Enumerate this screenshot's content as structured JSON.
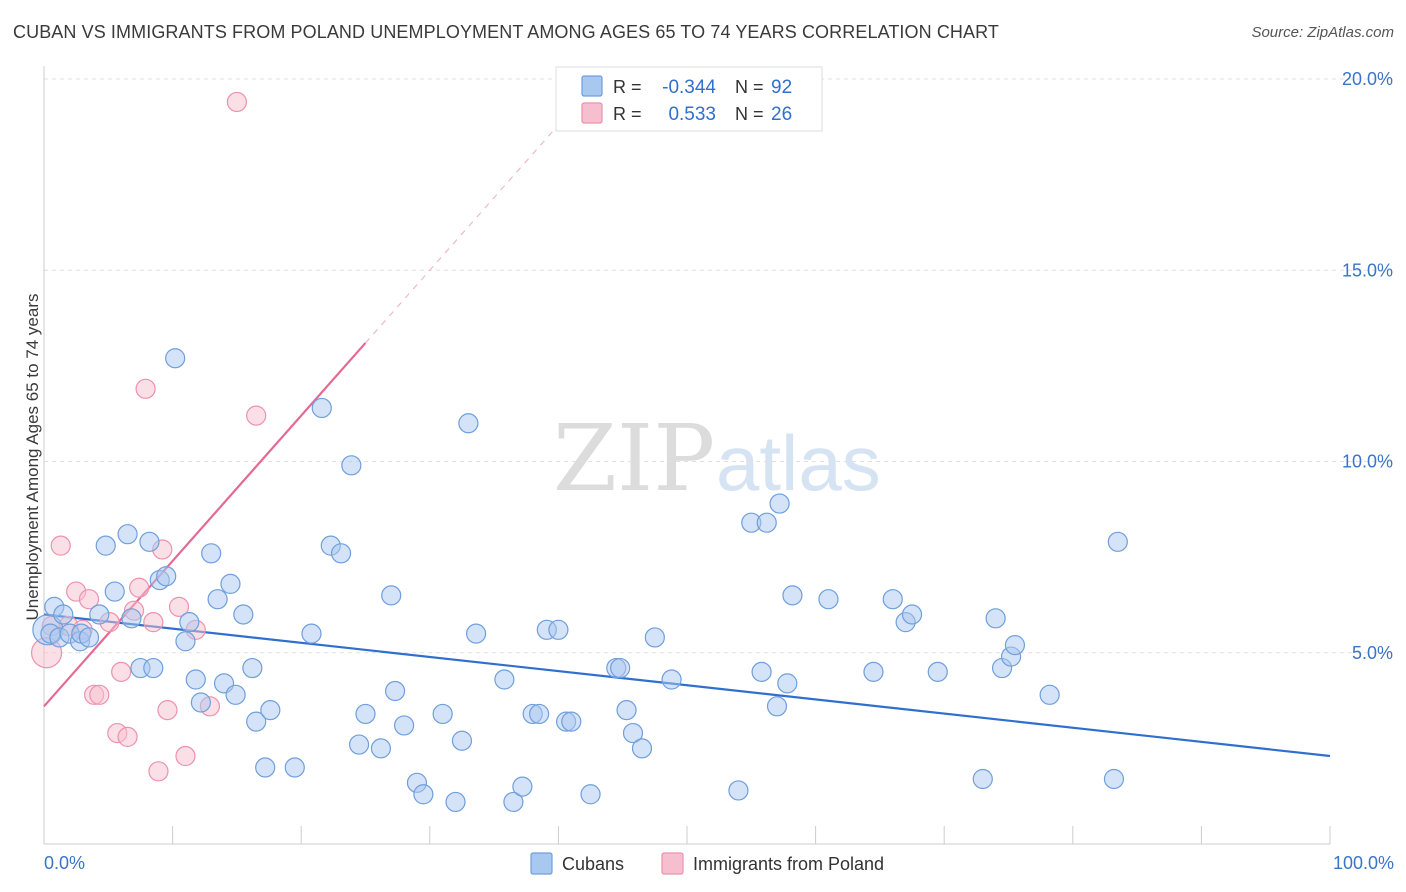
{
  "header": {
    "title": "CUBAN VS IMMIGRANTS FROM POLAND UNEMPLOYMENT AMONG AGES 65 TO 74 YEARS CORRELATION CHART",
    "source": "Source: ZipAtlas.com"
  },
  "watermark": {
    "zip": "ZIP",
    "atlas": "atlas"
  },
  "colors": {
    "cubans_fill": "#a9c8f0",
    "cubans_stroke": "#6f9fdc",
    "cubans_line": "#2f6fcd",
    "poland_fill": "#f6bfd0",
    "poland_stroke": "#ec92ae",
    "poland_line": "#e46a93",
    "axis_label_blue": "#3a74c9",
    "value_blue": "#2f6fcd"
  },
  "stats_legend": [
    {
      "series": "Cubans",
      "r_label": "R =",
      "r_value": "-0.344",
      "n_label": "N =",
      "n_value": "92"
    },
    {
      "series": "Immigrants from Poland",
      "r_label": "R =",
      "r_value": "0.533",
      "n_label": "N =",
      "n_value": "26"
    }
  ],
  "chart_data": {
    "type": "scatter",
    "title": "CUBAN VS IMMIGRANTS FROM POLAND UNEMPLOYMENT AMONG AGES 65 TO 74 YEARS CORRELATION CHART",
    "xlabel": "",
    "ylabel": "Unemployment Among Ages 65 to 74 years",
    "xlim": [
      0,
      100
    ],
    "ylim": [
      0,
      20
    ],
    "x_tick_labels": [
      "0.0%",
      "100.0%"
    ],
    "y_ticks": [
      5,
      10,
      15,
      20
    ],
    "y_tick_labels": [
      "5.0%",
      "10.0%",
      "15.0%",
      "20.0%"
    ],
    "grid": true,
    "legend_position": "bottom-center",
    "series": [
      {
        "name": "Cubans",
        "r": -0.344,
        "n": 92,
        "trend": {
          "x": [
            0,
            100
          ],
          "y": [
            6.0,
            2.3
          ]
        },
        "points": [
          [
            0.3,
            5.6
          ],
          [
            0.5,
            5.5
          ],
          [
            0.8,
            6.2
          ],
          [
            1.2,
            5.4
          ],
          [
            1.5,
            6.0
          ],
          [
            2.0,
            5.5
          ],
          [
            2.8,
            5.3
          ],
          [
            2.9,
            5.5
          ],
          [
            3.5,
            5.4
          ],
          [
            4.3,
            6.0
          ],
          [
            4.8,
            7.8
          ],
          [
            5.5,
            6.6
          ],
          [
            6.5,
            8.1
          ],
          [
            6.8,
            5.9
          ],
          [
            7.5,
            4.6
          ],
          [
            8.2,
            7.9
          ],
          [
            8.5,
            4.6
          ],
          [
            9.0,
            6.9
          ],
          [
            9.5,
            7.0
          ],
          [
            10.2,
            12.7
          ],
          [
            11.0,
            5.3
          ],
          [
            11.3,
            5.8
          ],
          [
            11.8,
            4.3
          ],
          [
            12.2,
            3.7
          ],
          [
            13.0,
            7.6
          ],
          [
            13.5,
            6.4
          ],
          [
            14.0,
            4.2
          ],
          [
            14.5,
            6.8
          ],
          [
            14.9,
            3.9
          ],
          [
            15.5,
            6.0
          ],
          [
            16.2,
            4.6
          ],
          [
            16.5,
            3.2
          ],
          [
            17.2,
            2.0
          ],
          [
            17.6,
            3.5
          ],
          [
            19.5,
            2.0
          ],
          [
            20.8,
            5.5
          ],
          [
            21.6,
            11.4
          ],
          [
            22.3,
            7.8
          ],
          [
            23.1,
            7.6
          ],
          [
            23.9,
            9.9
          ],
          [
            24.5,
            2.6
          ],
          [
            25.0,
            3.4
          ],
          [
            26.2,
            2.5
          ],
          [
            27.0,
            6.5
          ],
          [
            27.3,
            4.0
          ],
          [
            28.0,
            3.1
          ],
          [
            29.0,
            1.6
          ],
          [
            29.5,
            1.3
          ],
          [
            31.0,
            3.4
          ],
          [
            32.0,
            1.1
          ],
          [
            32.5,
            2.7
          ],
          [
            33.0,
            11.0
          ],
          [
            33.6,
            5.5
          ],
          [
            35.8,
            4.3
          ],
          [
            36.5,
            1.1
          ],
          [
            37.2,
            1.5
          ],
          [
            38.0,
            3.4
          ],
          [
            38.5,
            3.4
          ],
          [
            39.1,
            5.6
          ],
          [
            40.0,
            5.6
          ],
          [
            40.6,
            3.2
          ],
          [
            41.0,
            3.2
          ],
          [
            42.5,
            1.3
          ],
          [
            44.5,
            4.6
          ],
          [
            44.8,
            4.6
          ],
          [
            45.3,
            3.5
          ],
          [
            45.8,
            2.9
          ],
          [
            46.5,
            2.5
          ],
          [
            47.5,
            5.4
          ],
          [
            48.8,
            4.3
          ],
          [
            54.0,
            1.4
          ],
          [
            55.0,
            8.4
          ],
          [
            55.8,
            4.5
          ],
          [
            56.2,
            8.4
          ],
          [
            57.0,
            3.6
          ],
          [
            57.2,
            8.9
          ],
          [
            57.8,
            4.2
          ],
          [
            58.2,
            6.5
          ],
          [
            61.0,
            6.4
          ],
          [
            64.5,
            4.5
          ],
          [
            66.0,
            6.4
          ],
          [
            67.0,
            5.8
          ],
          [
            67.5,
            6.0
          ],
          [
            69.5,
            4.5
          ],
          [
            73.0,
            1.7
          ],
          [
            74.0,
            5.9
          ],
          [
            74.5,
            4.6
          ],
          [
            75.2,
            4.9
          ],
          [
            75.5,
            5.2
          ],
          [
            78.2,
            3.9
          ],
          [
            83.2,
            1.7
          ],
          [
            83.5,
            7.9
          ]
        ]
      },
      {
        "name": "Immigrants from Poland",
        "r": 0.533,
        "n": 26,
        "trend": {
          "x": [
            0,
            25
          ],
          "y": [
            3.6,
            13.1
          ]
        },
        "trend_extension": {
          "x": [
            25,
            40
          ],
          "y": [
            13.1,
            18.8
          ]
        },
        "points": [
          [
            0.2,
            5.0
          ],
          [
            0.6,
            5.7
          ],
          [
            1.3,
            7.8
          ],
          [
            1.9,
            5.7
          ],
          [
            2.5,
            6.6
          ],
          [
            3.0,
            5.6
          ],
          [
            3.5,
            6.4
          ],
          [
            3.9,
            3.9
          ],
          [
            4.3,
            3.9
          ],
          [
            5.1,
            5.8
          ],
          [
            5.7,
            2.9
          ],
          [
            6.0,
            4.5
          ],
          [
            6.5,
            2.8
          ],
          [
            7.0,
            6.1
          ],
          [
            7.4,
            6.7
          ],
          [
            7.9,
            11.9
          ],
          [
            8.5,
            5.8
          ],
          [
            8.9,
            1.9
          ],
          [
            9.2,
            7.7
          ],
          [
            9.6,
            3.5
          ],
          [
            10.5,
            6.2
          ],
          [
            11.0,
            2.3
          ],
          [
            11.8,
            5.6
          ],
          [
            12.9,
            3.6
          ],
          [
            15.0,
            19.4
          ],
          [
            16.5,
            11.2
          ]
        ]
      }
    ]
  },
  "legend": {
    "items": [
      {
        "label": "Cubans"
      },
      {
        "label": "Immigrants from Poland"
      }
    ]
  }
}
